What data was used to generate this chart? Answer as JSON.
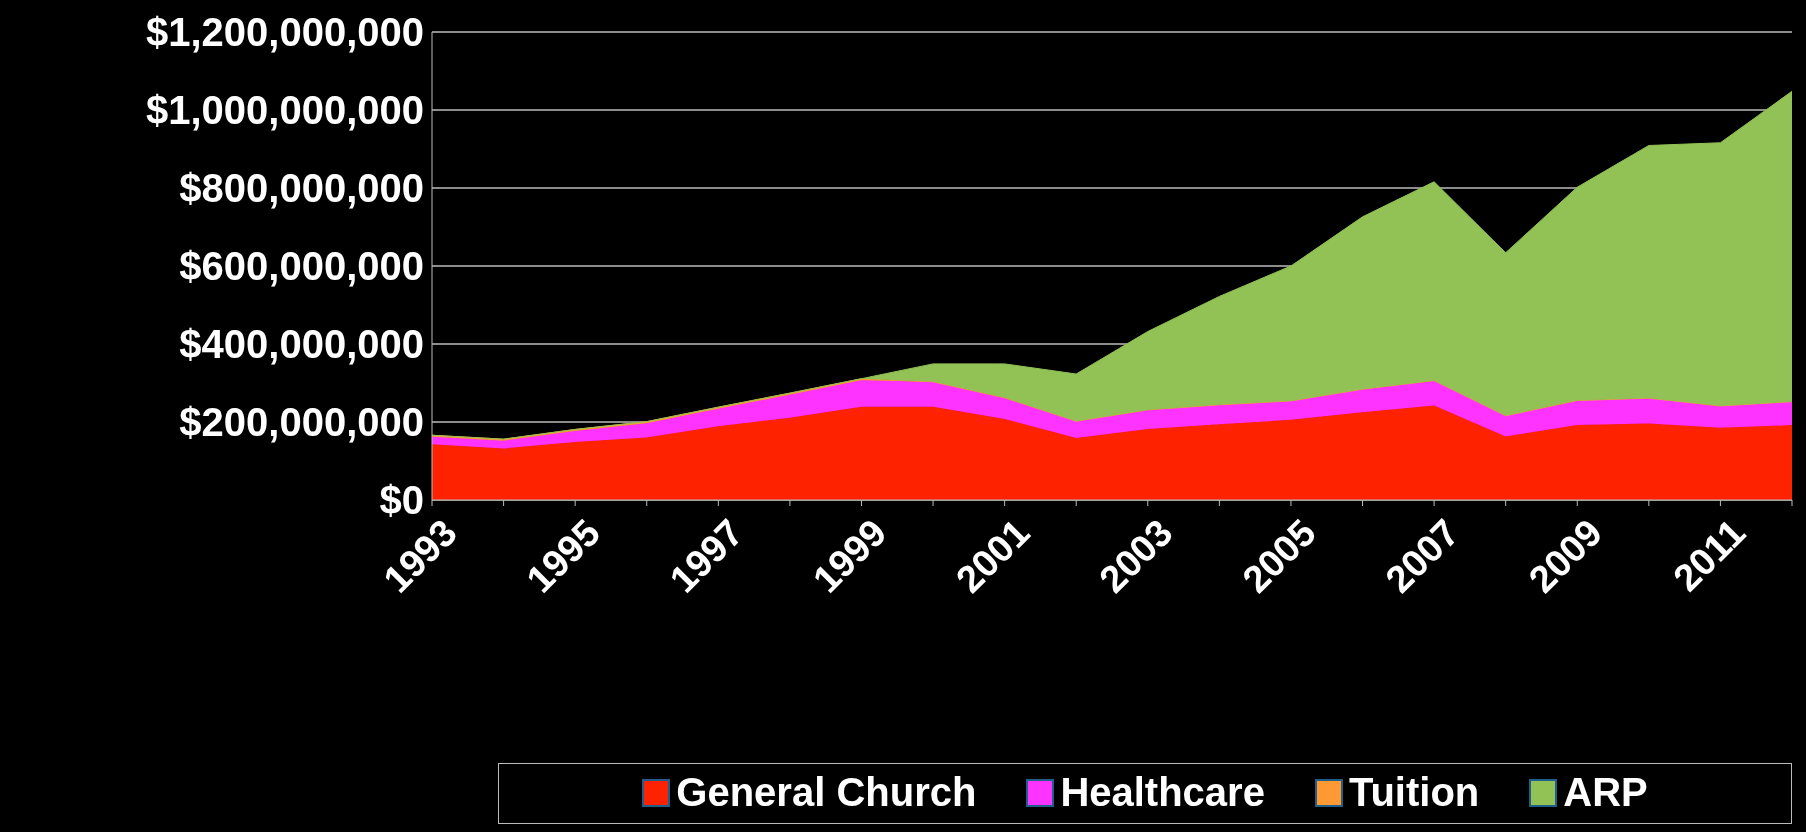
{
  "chart_data": {
    "type": "area",
    "stacked": true,
    "categories": [
      "1993",
      null,
      "1995",
      null,
      "1997",
      null,
      "1999",
      null,
      "2001",
      null,
      "2003",
      null,
      "2005",
      null,
      "2007",
      null,
      "2009",
      null,
      "2011",
      null
    ],
    "series": [
      {
        "name": "General Church",
        "color": "#ff2200",
        "values": [
          143000000,
          132000000,
          149000000,
          160000000,
          189000000,
          211000000,
          239000000,
          239000000,
          208000000,
          159000000,
          182000000,
          194000000,
          206000000,
          225000000,
          242000000,
          163000000,
          192000000,
          196000000,
          185000000,
          192000000
        ]
      },
      {
        "name": "Healthcare",
        "color": "#ff33ff",
        "values": [
          19000000,
          20000000,
          28000000,
          37000000,
          45000000,
          59000000,
          68000000,
          64000000,
          54000000,
          43000000,
          49000000,
          50000000,
          48000000,
          59000000,
          64000000,
          53000000,
          63000000,
          65000000,
          56000000,
          60000000
        ]
      },
      {
        "name": "Tuition",
        "color": "#ff9933",
        "values": [
          4000000,
          4000000,
          4000000,
          4000000,
          4000000,
          4000000,
          4000000,
          0,
          0,
          0,
          0,
          0,
          0,
          0,
          0,
          0,
          0,
          0,
          0,
          0
        ]
      },
      {
        "name": "ARP",
        "color": "#92c155",
        "values": [
          0,
          0,
          0,
          0,
          0,
          0,
          0,
          46000000,
          87000000,
          121000000,
          201000000,
          278000000,
          346000000,
          442000000,
          510000000,
          418000000,
          547000000,
          648000000,
          675000000,
          796000000
        ]
      }
    ],
    "ylim": [
      0,
      1200000000
    ],
    "yticks": [
      {
        "value": 0,
        "label": "$0"
      },
      {
        "value": 200000000,
        "label": "$200,000,000"
      },
      {
        "value": 400000000,
        "label": "$400,000,000"
      },
      {
        "value": 600000000,
        "label": "$600,000,000"
      },
      {
        "value": 800000000,
        "label": "$800,000,000"
      },
      {
        "value": 1000000000,
        "label": "$1,000,000,000"
      },
      {
        "value": 1200000000,
        "label": "$1,200,000,000"
      }
    ],
    "grid": "y",
    "legend": "bottom",
    "marker": "none"
  }
}
